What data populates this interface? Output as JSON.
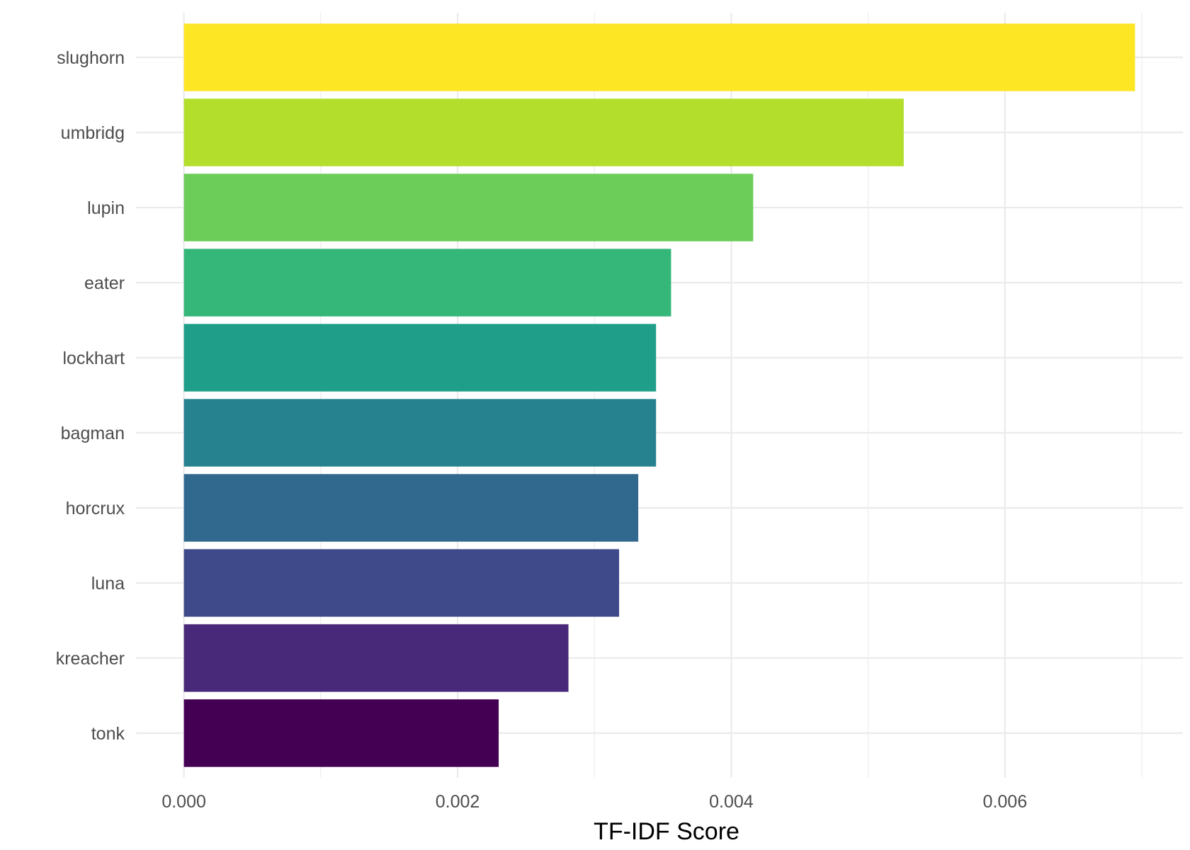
{
  "chart_data": {
    "type": "bar",
    "orientation": "horizontal",
    "categories": [
      "slughorn",
      "umbridg",
      "lupin",
      "eater",
      "lockhart",
      "bagman",
      "horcrux",
      "luna",
      "kreacher",
      "tonk"
    ],
    "values": [
      0.00695,
      0.00526,
      0.00416,
      0.00356,
      0.00345,
      0.00345,
      0.00332,
      0.00318,
      0.00281,
      0.0023
    ],
    "colors": [
      "#FDE725",
      "#B4DE2C",
      "#6DCD59",
      "#35B779",
      "#1F9E89",
      "#26828E",
      "#31688E",
      "#3E4A89",
      "#482878",
      "#440154"
    ],
    "xlabel": "TF-IDF Score",
    "ylabel": "",
    "xlim": [
      -0.00035,
      0.0073
    ],
    "x_ticks": [
      0,
      0.002,
      0.004,
      0.006
    ],
    "x_tick_labels": [
      "0.000",
      "0.002",
      "0.004",
      "0.006"
    ],
    "x_minor_ticks": [
      0.001,
      0.003,
      0.005,
      0.007
    ],
    "grid": true,
    "legend": "none"
  }
}
